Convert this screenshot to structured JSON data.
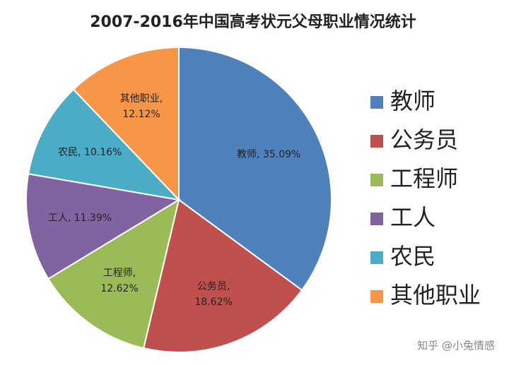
{
  "chart_data": {
    "type": "pie",
    "title": "2007-2016年中国高考状元父母职业情况统计",
    "categories": [
      "教师",
      "公务员",
      "工程师",
      "工人",
      "农民",
      "其他职业"
    ],
    "values": [
      35.09,
      18.62,
      12.62,
      11.39,
      10.16,
      12.12
    ],
    "value_labels": [
      "教师, 35.09%",
      "公务员, 18.62%",
      "工程师, 12.62%",
      "工人, 11.39%",
      "农民, 10.16%",
      "其他职业, 12.12%"
    ],
    "colors": [
      "#4f81bd",
      "#c0504d",
      "#9bbb59",
      "#8064a2",
      "#4bacc6",
      "#f79646"
    ],
    "legend": "right",
    "watermark": "知乎 @小兔情感"
  }
}
